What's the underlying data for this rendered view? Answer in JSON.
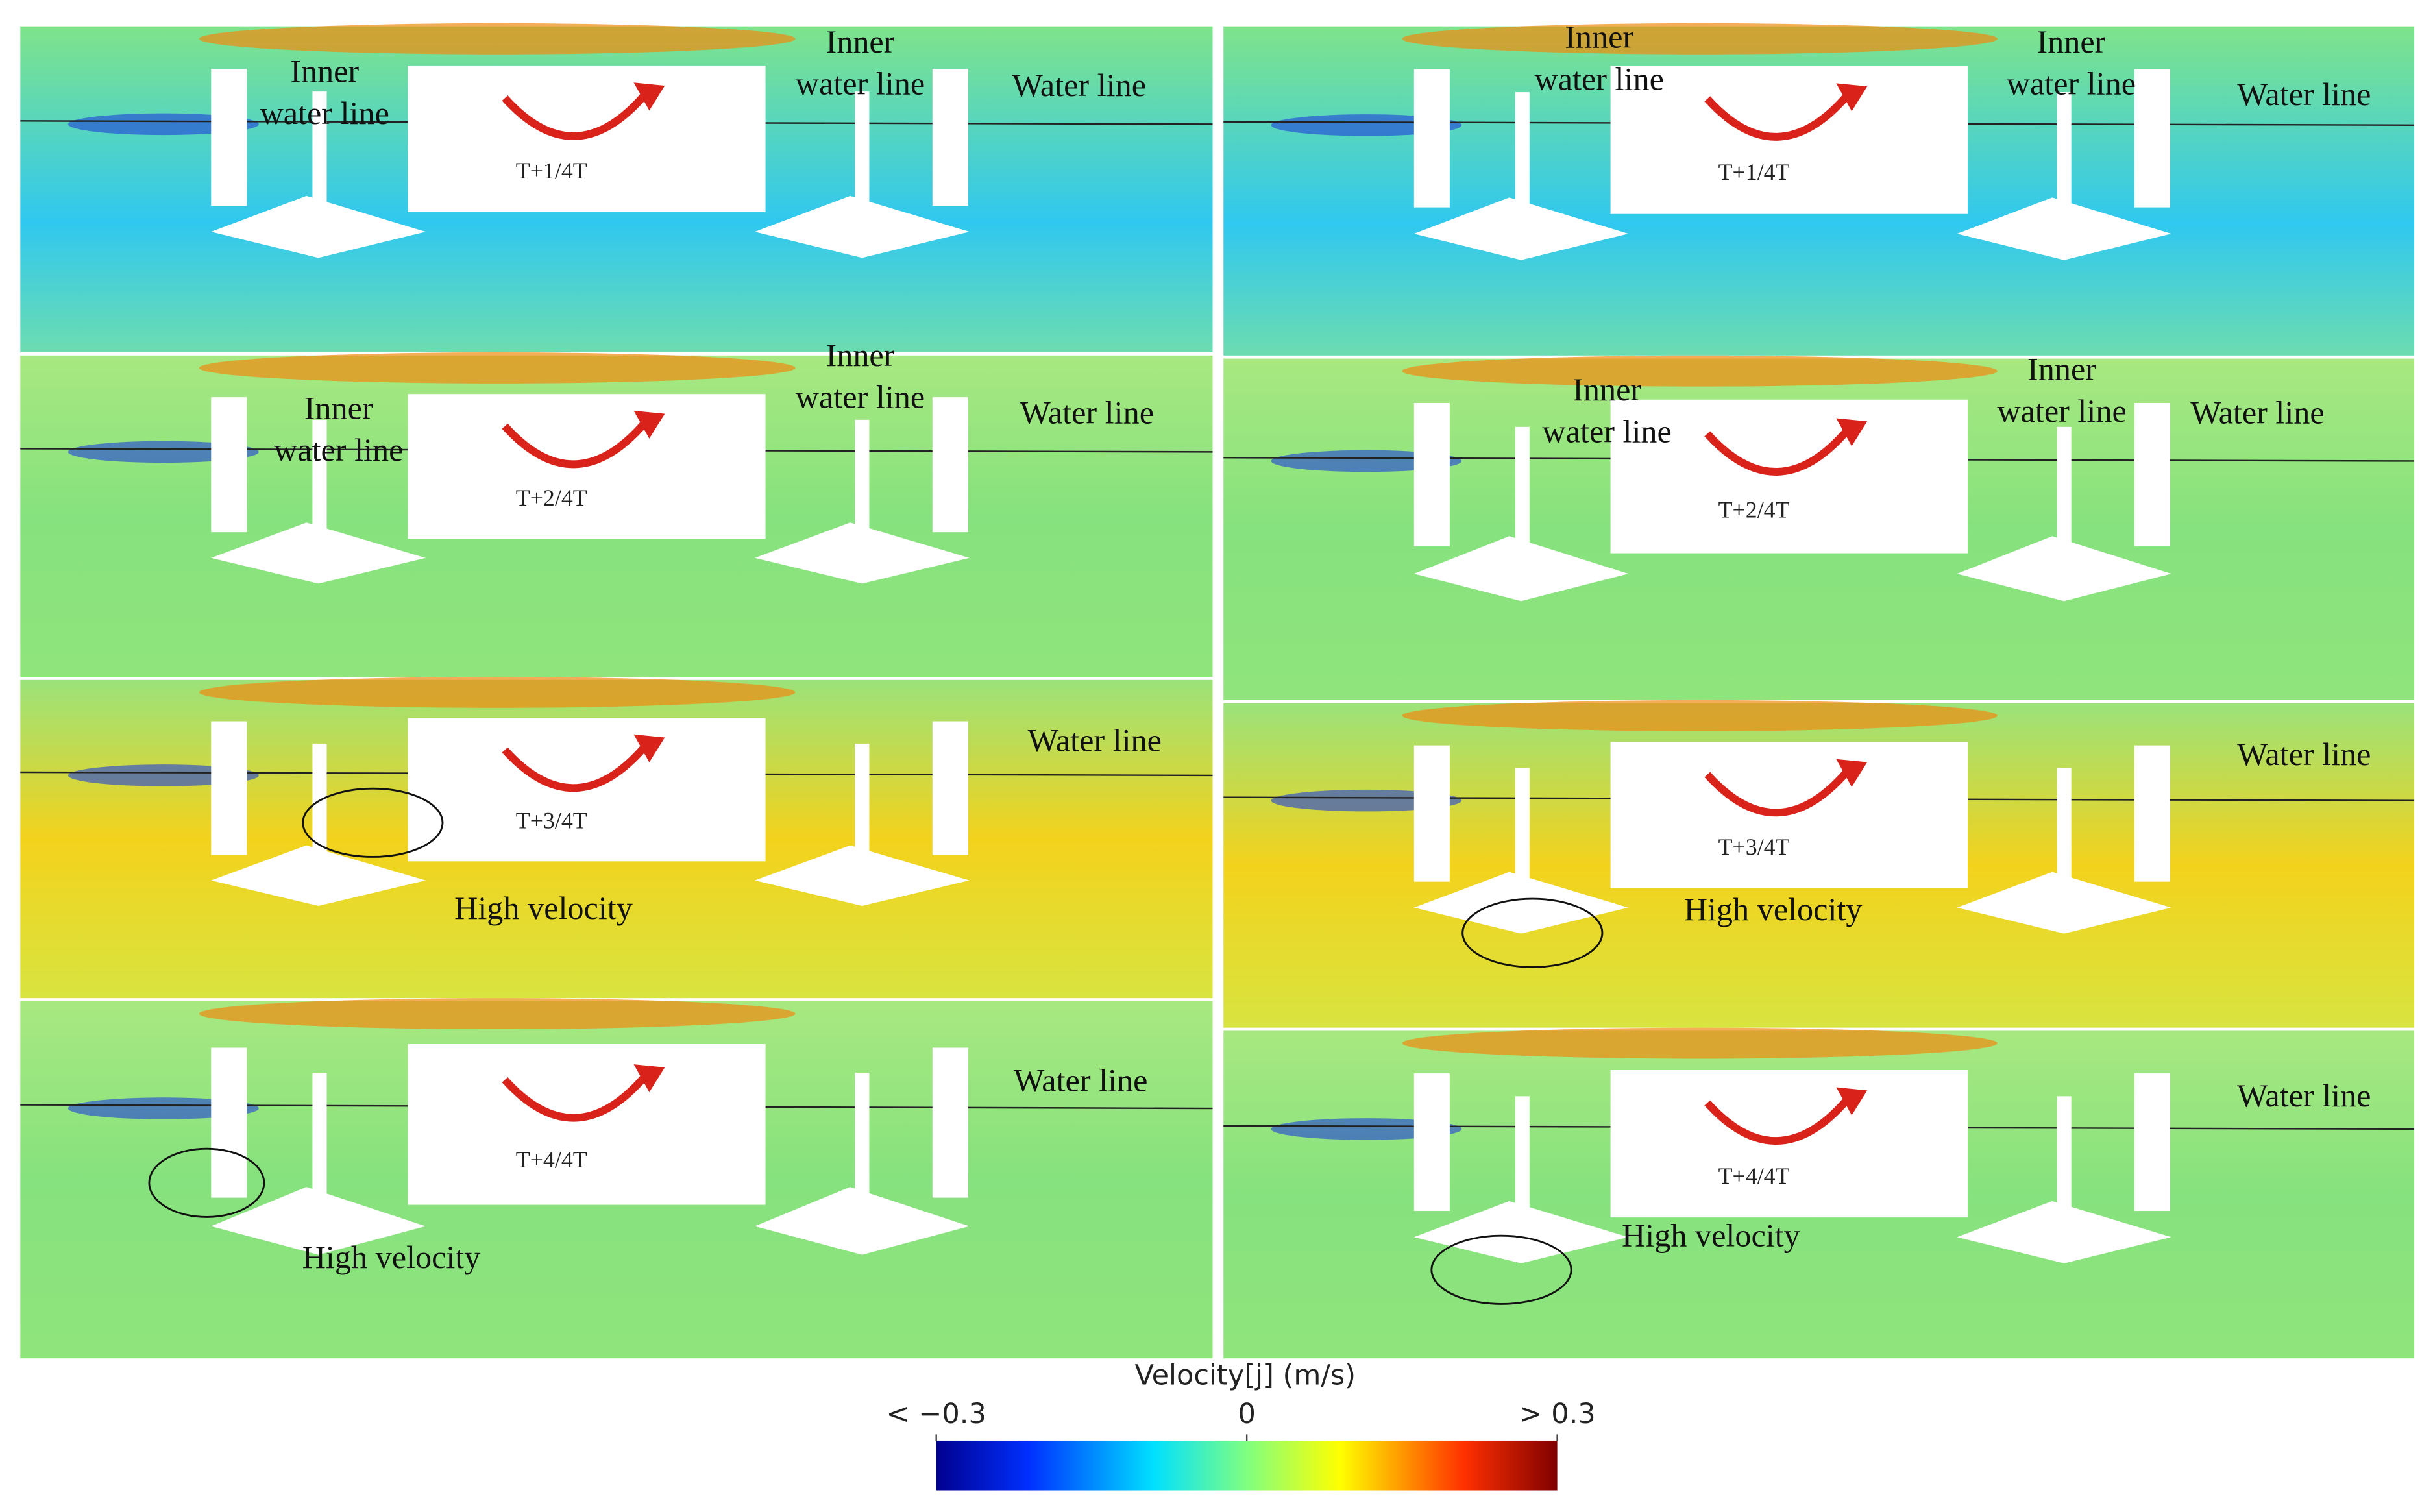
{
  "panels": [
    {
      "label": "T+1/4T",
      "annotations": [
        [
          "Inner",
          "water line"
        ],
        [
          "Inner",
          "water line"
        ],
        [
          "Water line"
        ]
      ]
    },
    {
      "label": "T+2/4T",
      "annotations": [
        [
          "Inner",
          "water line"
        ],
        [
          "Inner",
          "water line"
        ],
        [
          "Water line"
        ]
      ]
    },
    {
      "label": "T+3/4T",
      "annotations": [
        [
          "Water line"
        ],
        [
          "High velocity"
        ]
      ]
    },
    {
      "label": "T+4/4T",
      "annotations": [
        [
          "Water line"
        ],
        [
          "High velocity"
        ]
      ]
    },
    {
      "label": "T+1/4T",
      "annotations": [
        [
          "Inner",
          "water line"
        ],
        [
          "Inner",
          "water line"
        ],
        [
          "Water line"
        ]
      ]
    },
    {
      "label": "T+2/4T",
      "annotations": [
        [
          "Inner",
          "water line"
        ],
        [
          "Inner",
          "water line"
        ],
        [
          "Water line"
        ]
      ]
    },
    {
      "label": "T+3/4T",
      "annotations": [
        [
          "Water line"
        ],
        [
          "High velocity"
        ]
      ]
    },
    {
      "label": "T+4/4T",
      "annotations": [
        [
          "Water line"
        ],
        [
          "High velocity"
        ]
      ]
    }
  ],
  "colorbar": {
    "title": "Velocity[j] (m/s)",
    "range": [
      -0.3,
      0.3
    ],
    "ticks": [
      {
        "value": -0.3,
        "label": "< −0.3"
      },
      0,
      {
        "value": 0.3,
        "label": "> 0.3"
      }
    ]
  }
}
